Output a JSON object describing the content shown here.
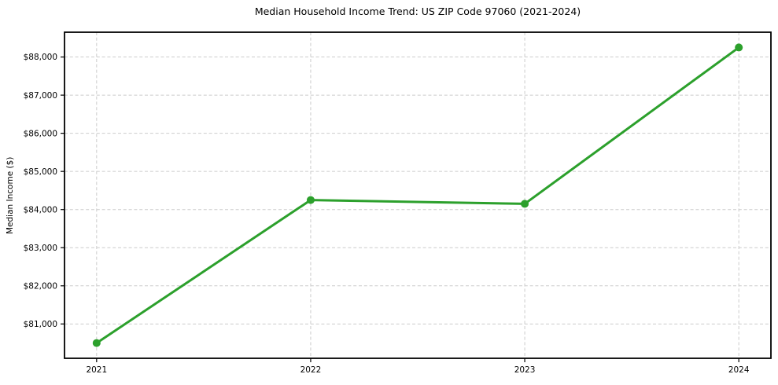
{
  "chart_data": {
    "type": "line",
    "title": "Median Household Income Trend: US ZIP Code 97060 (2021-2024)",
    "xlabel": "",
    "ylabel": "Median Income ($)",
    "x": [
      2021,
      2022,
      2023,
      2024
    ],
    "x_tick_labels": [
      "2021",
      "2022",
      "2023",
      "2024"
    ],
    "values": [
      80500,
      84250,
      84150,
      88250
    ],
    "ytick_values": [
      81000,
      82000,
      83000,
      84000,
      85000,
      86000,
      87000,
      88000
    ],
    "ytick_labels": [
      "$81,000",
      "$82,000",
      "$83,000",
      "$84,000",
      "$85,000",
      "$86,000",
      "$87,000",
      "$88,000"
    ],
    "xlim": [
      2020.85,
      2024.15
    ],
    "ylim": [
      80100,
      88650
    ],
    "grid": true,
    "grid_style": "dashed",
    "legend": "none",
    "line_color": "#2ca02c",
    "marker": "circle",
    "background_color": "#ffffff"
  }
}
